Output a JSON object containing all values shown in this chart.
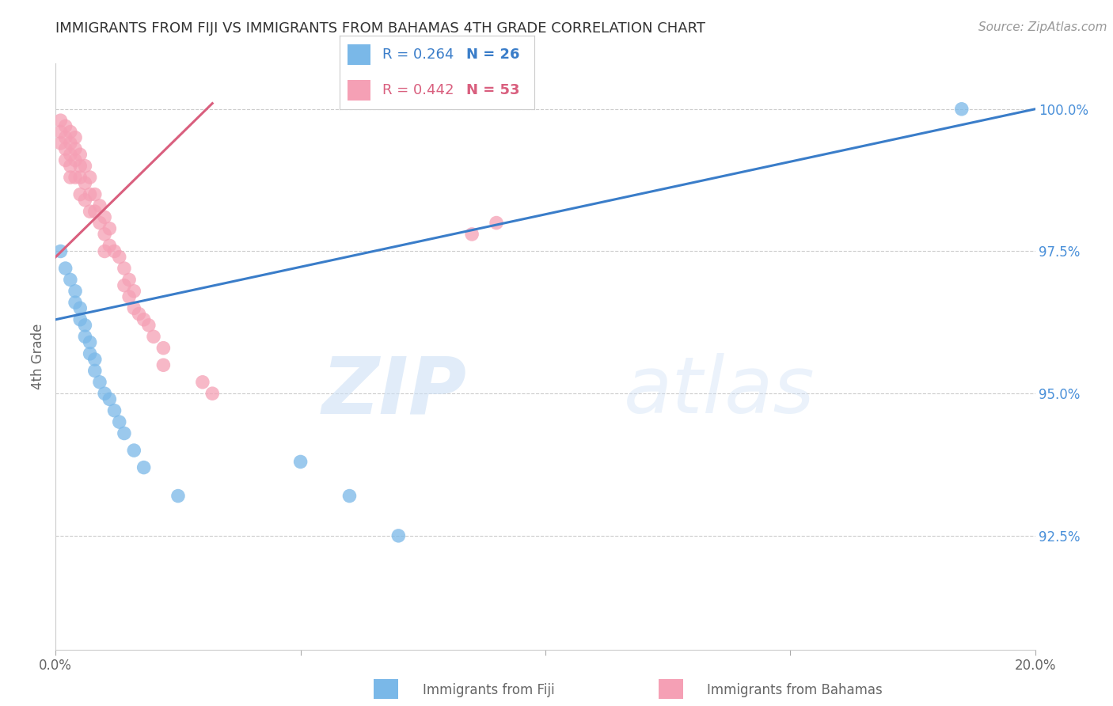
{
  "title": "IMMIGRANTS FROM FIJI VS IMMIGRANTS FROM BAHAMAS 4TH GRADE CORRELATION CHART",
  "source": "Source: ZipAtlas.com",
  "ylabel": "4th Grade",
  "watermark_zip": "ZIP",
  "watermark_atlas": "atlas",
  "xlim": [
    0.0,
    0.2
  ],
  "ylim": [
    0.905,
    1.008
  ],
  "xticks": [
    0.0,
    0.05,
    0.1,
    0.15,
    0.2
  ],
  "xticklabels": [
    "0.0%",
    "",
    "",
    "",
    "20.0%"
  ],
  "yticks": [
    0.925,
    0.95,
    0.975,
    1.0
  ],
  "yticklabels": [
    "92.5%",
    "95.0%",
    "97.5%",
    "100.0%"
  ],
  "fiji_color": "#7ab8e8",
  "bahamas_color": "#f5a0b5",
  "fiji_line_color": "#3a7dc9",
  "bahamas_line_color": "#d95f7e",
  "legend_fiji_R": "R = 0.264",
  "legend_fiji_N": "N = 26",
  "legend_bahamas_R": "R = 0.442",
  "legend_bahamas_N": "N = 53",
  "fiji_label": "Immigrants from Fiji",
  "bahamas_label": "Immigrants from Bahamas",
  "fiji_scatter_x": [
    0.001,
    0.002,
    0.003,
    0.004,
    0.004,
    0.005,
    0.005,
    0.006,
    0.006,
    0.007,
    0.007,
    0.008,
    0.008,
    0.009,
    0.01,
    0.011,
    0.012,
    0.013,
    0.014,
    0.016,
    0.018,
    0.025,
    0.185,
    0.05,
    0.06,
    0.07
  ],
  "fiji_scatter_y": [
    0.975,
    0.972,
    0.97,
    0.968,
    0.966,
    0.965,
    0.963,
    0.962,
    0.96,
    0.959,
    0.957,
    0.956,
    0.954,
    0.952,
    0.95,
    0.949,
    0.947,
    0.945,
    0.943,
    0.94,
    0.937,
    0.932,
    1.0,
    0.938,
    0.932,
    0.925
  ],
  "bahamas_scatter_x": [
    0.001,
    0.001,
    0.001,
    0.002,
    0.002,
    0.002,
    0.002,
    0.003,
    0.003,
    0.003,
    0.003,
    0.003,
    0.004,
    0.004,
    0.004,
    0.004,
    0.005,
    0.005,
    0.005,
    0.005,
    0.006,
    0.006,
    0.006,
    0.007,
    0.007,
    0.007,
    0.008,
    0.008,
    0.009,
    0.009,
    0.01,
    0.01,
    0.01,
    0.011,
    0.011,
    0.012,
    0.013,
    0.014,
    0.014,
    0.015,
    0.015,
    0.016,
    0.016,
    0.017,
    0.018,
    0.019,
    0.02,
    0.022,
    0.022,
    0.03,
    0.032,
    0.085,
    0.09
  ],
  "bahamas_scatter_y": [
    0.998,
    0.996,
    0.994,
    0.997,
    0.995,
    0.993,
    0.991,
    0.996,
    0.994,
    0.992,
    0.99,
    0.988,
    0.995,
    0.993,
    0.991,
    0.988,
    0.992,
    0.99,
    0.988,
    0.985,
    0.99,
    0.987,
    0.984,
    0.988,
    0.985,
    0.982,
    0.985,
    0.982,
    0.983,
    0.98,
    0.981,
    0.978,
    0.975,
    0.979,
    0.976,
    0.975,
    0.974,
    0.972,
    0.969,
    0.97,
    0.967,
    0.968,
    0.965,
    0.964,
    0.963,
    0.962,
    0.96,
    0.958,
    0.955,
    0.952,
    0.95,
    0.978,
    0.98
  ],
  "fiji_line_x": [
    0.0,
    0.2
  ],
  "fiji_line_y": [
    0.963,
    1.0
  ],
  "bahamas_line_x": [
    0.0,
    0.032
  ],
  "bahamas_line_y": [
    0.974,
    1.001
  ],
  "background_color": "#ffffff",
  "grid_color": "#cccccc",
  "title_color": "#333333",
  "axis_label_color": "#666666",
  "tick_color": "#666666",
  "right_tick_color": "#4a90d9"
}
